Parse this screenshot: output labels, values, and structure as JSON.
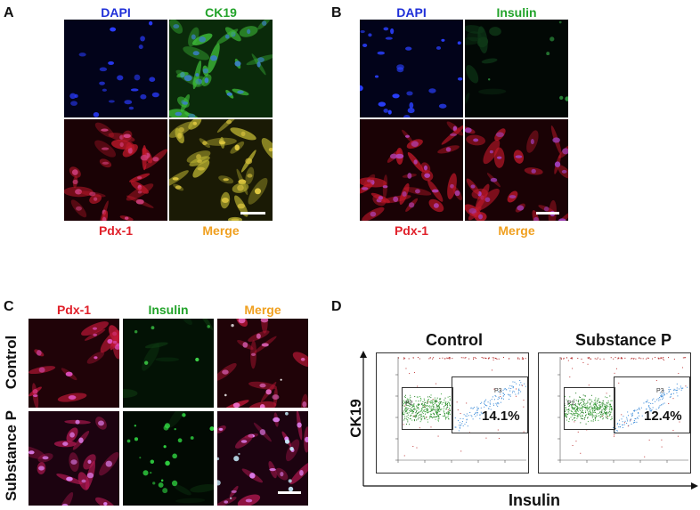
{
  "panels": {
    "A": {
      "letter": "A",
      "top_labels": [
        "DAPI",
        "CK19"
      ],
      "bottom_labels": [
        "Pdx-1",
        "Merge"
      ]
    },
    "B": {
      "letter": "B",
      "top_labels": [
        "DAPI",
        "Insulin"
      ],
      "bottom_labels": [
        "Pdx-1",
        "Merge"
      ]
    },
    "C": {
      "letter": "C",
      "col_labels": [
        "Pdx-1",
        "Insulin",
        "Merge"
      ],
      "row_labels": [
        "Control",
        "Substance P"
      ]
    },
    "D": {
      "letter": "D",
      "titles": [
        "Control",
        "Substance P"
      ],
      "y_axis": "CK19",
      "x_axis": "Insulin",
      "gates": [
        "P2",
        "P3"
      ],
      "percentages": [
        "14.1%",
        "12.4%"
      ]
    }
  },
  "colors": {
    "dapi": "#1f2fd8",
    "green": "#22a32a",
    "red": "#e0202a",
    "merge": "#f0a020"
  }
}
